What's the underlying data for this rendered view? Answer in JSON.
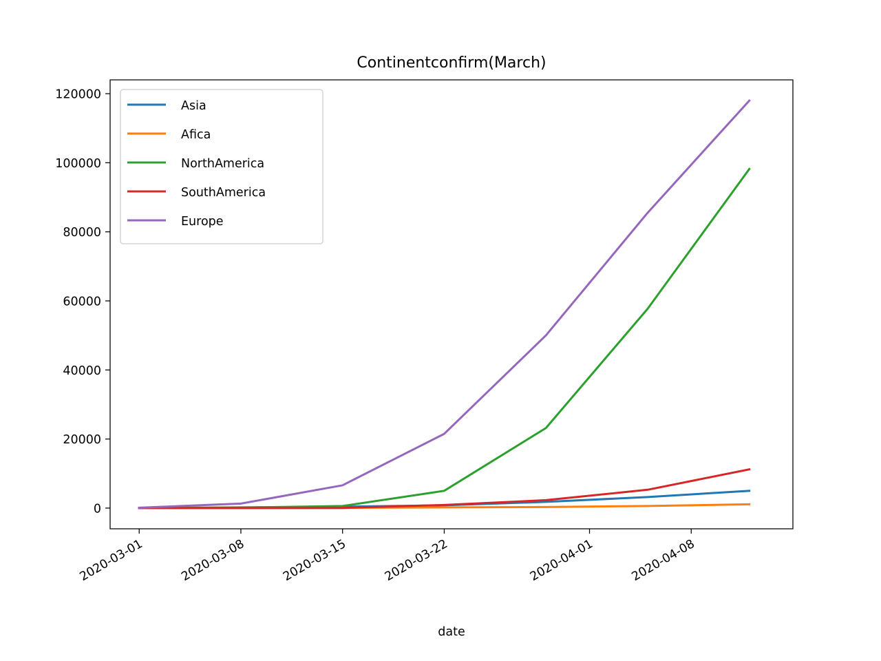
{
  "chart_data": {
    "type": "line",
    "title": "Continentconfirm(March)",
    "xlabel": "date",
    "ylabel": "",
    "x": [
      "2020-03-01",
      "2020-03-08",
      "2020-03-15",
      "2020-03-22",
      "2020-03-29",
      "2020-04-05",
      "2020-04-12"
    ],
    "xticks": [
      "2020-03-01",
      "2020-03-08",
      "2020-03-15",
      "2020-03-22",
      "2020-04-01",
      "2020-04-08"
    ],
    "xlim": [
      "2020-02-28",
      "2020-04-15"
    ],
    "yticks": [
      0,
      20000,
      40000,
      60000,
      80000,
      100000,
      120000
    ],
    "ylim": [
      -6000,
      124000
    ],
    "grid": false,
    "legend_position": "upper-left",
    "series": [
      {
        "name": "Asia",
        "color": "#1f77b4",
        "values": [
          0,
          200,
          400,
          800,
          1800,
          3200,
          5000
        ]
      },
      {
        "name": "Afica",
        "color": "#ff7f0e",
        "values": [
          0,
          20,
          60,
          200,
          300,
          600,
          1100
        ]
      },
      {
        "name": "NorthAmerica",
        "color": "#2ca02c",
        "values": [
          50,
          150,
          600,
          5000,
          23200,
          57700,
          98200
        ]
      },
      {
        "name": "SouthAmerica",
        "color": "#d62728",
        "values": [
          0,
          10,
          50,
          900,
          2300,
          5300,
          11200
        ]
      },
      {
        "name": "Europe",
        "color": "#9467bd",
        "values": [
          100,
          1300,
          6600,
          21500,
          50000,
          85500,
          118000
        ]
      }
    ]
  }
}
